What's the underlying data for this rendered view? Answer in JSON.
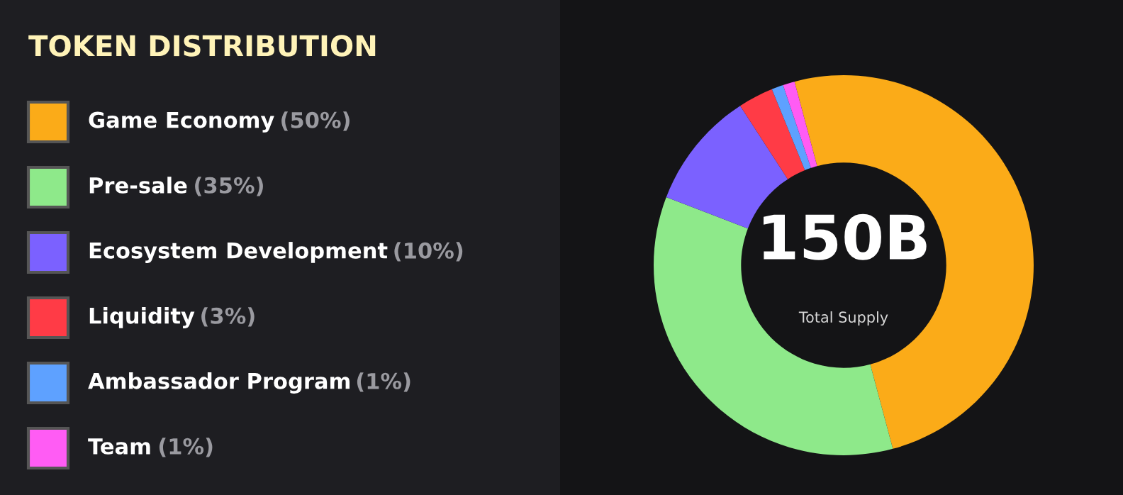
{
  "chart_data": {
    "type": "donut",
    "title": "TOKEN DISTRIBUTION",
    "categories": [
      "Game Economy",
      "Pre-sale",
      "Ecosystem Development",
      "Liquidity",
      "Ambassador Program",
      "Team"
    ],
    "values": [
      50,
      35,
      10,
      3,
      1,
      1
    ],
    "value_labels": [
      "(50%)",
      "(35%)",
      "(10%)",
      "(3%)",
      "(1%)",
      "(1%)"
    ],
    "colors": [
      "#fbab18",
      "#8ee98a",
      "#7b61ff",
      "#ff3b46",
      "#5ea1ff",
      "#ff5cf4"
    ],
    "annotations": [
      "150B",
      "Total Supply"
    ],
    "legend": "left"
  }
}
